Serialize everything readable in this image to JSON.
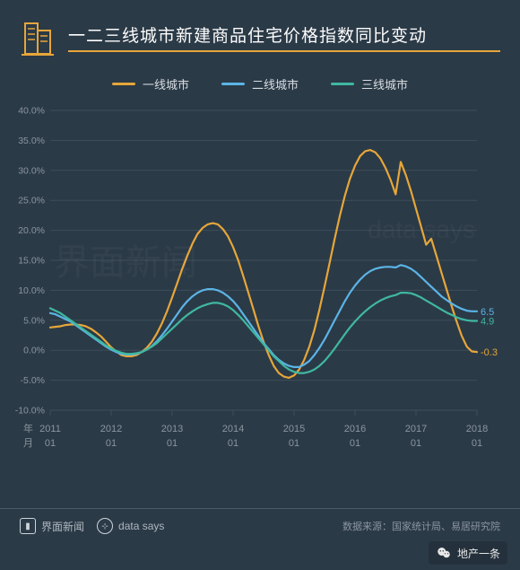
{
  "title": "一二三线城市新建商品住宅价格指数同比变动",
  "legend": [
    {
      "label": "一线城市",
      "color": "#e6a63a"
    },
    {
      "label": "二线城市",
      "color": "#5bb4e6"
    },
    {
      "label": "三线城市",
      "color": "#3fb8a0"
    }
  ],
  "chart": {
    "type": "line",
    "background": "#2b3a47",
    "grid_color": "#3e4d5a",
    "text_color": "#8a959f",
    "ylim": [
      -10,
      40
    ],
    "ytick_step": 5,
    "ytick_format": "{v}.0%",
    "x_axis_label_lines": [
      "年",
      "月"
    ],
    "x_ticks": [
      {
        "pos": 0,
        "top": "2011",
        "bottom": "01"
      },
      {
        "pos": 12,
        "top": "2012",
        "bottom": "01"
      },
      {
        "pos": 24,
        "top": "2013",
        "bottom": "01"
      },
      {
        "pos": 36,
        "top": "2014",
        "bottom": "01"
      },
      {
        "pos": 48,
        "top": "2015",
        "bottom": "01"
      },
      {
        "pos": 60,
        "top": "2016",
        "bottom": "01"
      },
      {
        "pos": 72,
        "top": "2017",
        "bottom": "01"
      },
      {
        "pos": 84,
        "top": "2018",
        "bottom": "01"
      }
    ],
    "n_points": 85,
    "series": [
      {
        "name": "tier1",
        "color": "#e6a63a",
        "width": 2.2,
        "end_label": "-0.3",
        "data": [
          3.8,
          3.9,
          4.0,
          4.2,
          4.3,
          4.3,
          4.2,
          4.0,
          3.6,
          3.0,
          2.3,
          1.4,
          0.5,
          -0.2,
          -0.8,
          -1.0,
          -1.0,
          -0.8,
          -0.3,
          0.4,
          1.4,
          2.8,
          4.5,
          6.5,
          8.8,
          11.2,
          13.6,
          15.8,
          17.8,
          19.4,
          20.4,
          21.0,
          21.2,
          21.0,
          20.2,
          19.0,
          17.2,
          15.0,
          12.4,
          9.6,
          6.8,
          4.0,
          1.4,
          -0.8,
          -2.6,
          -3.8,
          -4.4,
          -4.6,
          -4.2,
          -3.2,
          -1.6,
          0.6,
          3.4,
          6.8,
          10.6,
          14.6,
          18.6,
          22.4,
          25.8,
          28.6,
          30.8,
          32.4,
          33.2,
          33.4,
          33.0,
          32.0,
          30.4,
          28.4,
          26.0,
          31.4,
          29.2,
          26.6,
          23.6,
          20.6,
          17.6,
          18.6,
          15.8,
          13.0,
          10.2,
          7.4,
          4.8,
          2.4,
          0.6,
          -0.2,
          -0.3
        ]
      },
      {
        "name": "tier2",
        "color": "#5bb4e6",
        "width": 2.2,
        "end_label": "6.5",
        "data": [
          6.2,
          6.0,
          5.6,
          5.2,
          4.8,
          4.2,
          3.6,
          3.0,
          2.4,
          1.8,
          1.2,
          0.6,
          0.1,
          -0.3,
          -0.6,
          -0.7,
          -0.7,
          -0.6,
          -0.3,
          0.1,
          0.7,
          1.5,
          2.5,
          3.6,
          4.8,
          6.0,
          7.2,
          8.2,
          9.0,
          9.6,
          10.0,
          10.2,
          10.2,
          10.0,
          9.6,
          9.0,
          8.2,
          7.2,
          6.0,
          4.8,
          3.6,
          2.4,
          1.2,
          0.2,
          -0.8,
          -1.6,
          -2.2,
          -2.6,
          -2.8,
          -2.8,
          -2.4,
          -1.8,
          -0.8,
          0.4,
          1.8,
          3.4,
          5.0,
          6.6,
          8.2,
          9.6,
          10.8,
          11.8,
          12.6,
          13.2,
          13.6,
          13.8,
          13.9,
          13.9,
          13.8,
          14.2,
          14.0,
          13.6,
          13.0,
          12.2,
          11.4,
          10.6,
          9.8,
          9.0,
          8.4,
          7.8,
          7.3,
          6.9,
          6.6,
          6.5,
          6.5
        ]
      },
      {
        "name": "tier3",
        "color": "#3fb8a0",
        "width": 2.2,
        "end_label": "4.9",
        "data": [
          7.0,
          6.6,
          6.2,
          5.6,
          5.0,
          4.4,
          3.8,
          3.2,
          2.6,
          2.0,
          1.4,
          0.8,
          0.3,
          -0.1,
          -0.4,
          -0.6,
          -0.6,
          -0.5,
          -0.3,
          0.1,
          0.6,
          1.2,
          2.0,
          2.8,
          3.6,
          4.4,
          5.2,
          5.9,
          6.5,
          7.0,
          7.4,
          7.7,
          7.9,
          7.9,
          7.7,
          7.3,
          6.7,
          5.9,
          5.0,
          4.0,
          3.0,
          2.0,
          1.0,
          0.0,
          -1.0,
          -1.8,
          -2.6,
          -3.2,
          -3.6,
          -3.8,
          -3.8,
          -3.6,
          -3.2,
          -2.6,
          -1.8,
          -0.8,
          0.3,
          1.5,
          2.7,
          3.8,
          4.8,
          5.7,
          6.5,
          7.2,
          7.8,
          8.3,
          8.7,
          9.0,
          9.2,
          9.6,
          9.6,
          9.5,
          9.2,
          8.8,
          8.3,
          7.8,
          7.3,
          6.8,
          6.3,
          5.9,
          5.5,
          5.2,
          5.0,
          4.9,
          4.9
        ]
      }
    ]
  },
  "footer": {
    "brand": "界面新闻",
    "sub_brand": "data says",
    "source": "数据来源：国家统计局、易居研究院"
  },
  "wechat": {
    "label": "地产一条"
  }
}
